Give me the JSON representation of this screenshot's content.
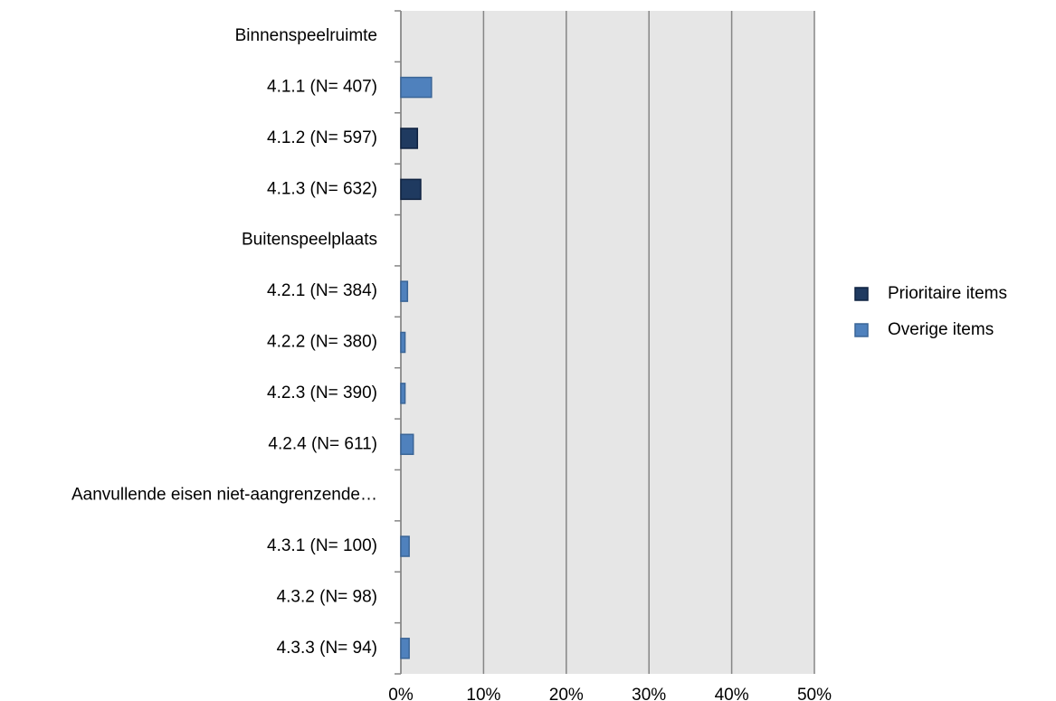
{
  "chart_data": {
    "type": "hbar",
    "categories": [
      "Binnenspeelruimte",
      "4.1.1 (N= 407)",
      "4.1.2 (N= 597)",
      "4.1.3 (N= 632)",
      "Buitenspeelplaats",
      "4.2.1 (N= 384)",
      "4.2.2 (N= 380)",
      "4.2.3 (N= 390)",
      "4.2.4 (N= 611)",
      "Aanvullende eisen niet-aangrenzende…",
      "4.3.1 (N= 100)",
      "4.3.2 (N= 98)",
      "4.3.3 (N= 94)"
    ],
    "series": [
      {
        "name": "Prioritaire items",
        "color": "#1f3a60",
        "values": [
          null,
          null,
          2.0,
          2.4,
          null,
          null,
          null,
          null,
          null,
          null,
          null,
          null,
          null
        ]
      },
      {
        "name": "Overige items",
        "color": "#4f81bd",
        "values": [
          null,
          3.7,
          null,
          null,
          null,
          0.8,
          0.5,
          0.5,
          1.5,
          null,
          1.0,
          null,
          1.0
        ]
      }
    ],
    "xlim": [
      0,
      50
    ],
    "xticks": [
      {
        "value": 0,
        "label": "0%"
      },
      {
        "value": 10,
        "label": "10%"
      },
      {
        "value": 20,
        "label": "20%"
      },
      {
        "value": 30,
        "label": "30%"
      },
      {
        "value": 40,
        "label": "40%"
      },
      {
        "value": 50,
        "label": "50%"
      }
    ],
    "grid": true,
    "legend": "right"
  }
}
